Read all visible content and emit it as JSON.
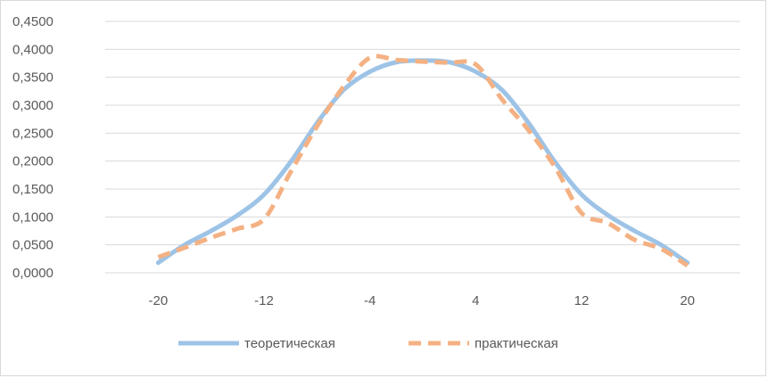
{
  "chart_data": {
    "type": "line",
    "title": "",
    "xlabel": "",
    "ylabel": "",
    "xlim": [
      -24,
      24
    ],
    "ylim": [
      0,
      0.45
    ],
    "x_ticks": [
      -20,
      -12,
      -4,
      4,
      12,
      20
    ],
    "y_ticks": [
      "0,0000",
      "0,0500",
      "0,1000",
      "0,1500",
      "0,2000",
      "0,2500",
      "0,3000",
      "0,3500",
      "0,4000",
      "0,4500"
    ],
    "grid": true,
    "legend": "bottom",
    "series": [
      {
        "name": "теоретическая",
        "color": "#9dc3e6",
        "style": "solid",
        "x": [
          -20,
          -18,
          -16,
          -14,
          -12,
          -10,
          -8,
          -6,
          -4,
          -2,
          0,
          2,
          4,
          6,
          8,
          10,
          12,
          14,
          16,
          18,
          20
        ],
        "y": [
          0.018,
          0.05,
          0.075,
          0.103,
          0.14,
          0.198,
          0.268,
          0.327,
          0.36,
          0.377,
          0.38,
          0.377,
          0.36,
          0.327,
          0.268,
          0.198,
          0.14,
          0.103,
          0.075,
          0.05,
          0.018
        ]
      },
      {
        "name": "практическая",
        "color": "#f4b183",
        "style": "dashed",
        "x": [
          -20,
          -18,
          -16,
          -14,
          -12,
          -10,
          -8,
          -6,
          -4,
          -2,
          0,
          2,
          4,
          6,
          8,
          10,
          12,
          14,
          16,
          18,
          20
        ],
        "y": [
          0.028,
          0.045,
          0.063,
          0.079,
          0.096,
          0.18,
          0.262,
          0.333,
          0.385,
          0.381,
          0.378,
          0.376,
          0.373,
          0.31,
          0.255,
          0.189,
          0.107,
          0.089,
          0.059,
          0.043,
          0.013
        ]
      }
    ]
  }
}
